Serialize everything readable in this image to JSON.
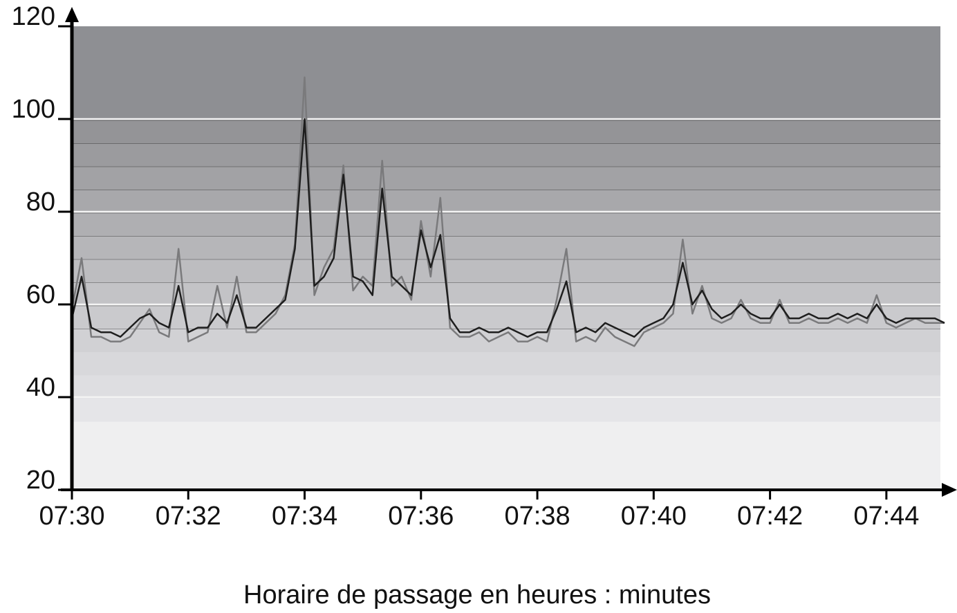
{
  "chart_data": {
    "type": "line",
    "xlabel": "Horaire de passage en heures : minutes",
    "categories": [
      "07:30",
      null,
      null,
      null,
      null,
      null,
      null,
      null,
      null,
      null,
      null,
      null,
      "07:32",
      null,
      null,
      null,
      null,
      null,
      null,
      null,
      null,
      null,
      null,
      null,
      "07:34",
      null,
      null,
      null,
      null,
      null,
      null,
      null,
      null,
      null,
      null,
      null,
      "07:36",
      null,
      null,
      null,
      null,
      null,
      null,
      null,
      null,
      null,
      null,
      null,
      "07:38",
      null,
      null,
      null,
      null,
      null,
      null,
      null,
      null,
      null,
      null,
      null,
      "07:40",
      null,
      null,
      null,
      null,
      null,
      null,
      null,
      null,
      null,
      null,
      null,
      "07:42",
      null,
      null,
      null,
      null,
      null,
      null,
      null,
      null,
      null,
      null,
      null,
      "07:44",
      null,
      null,
      null,
      null,
      null,
      null
    ],
    "series": [
      {
        "color": "#7a7a7c",
        "values": [
          59,
          70,
          53,
          53,
          52,
          52,
          53,
          56,
          59,
          54,
          53,
          72,
          52,
          53,
          54,
          64,
          55,
          66,
          54,
          54,
          56,
          58,
          62,
          73,
          109,
          62,
          68,
          72,
          90,
          63,
          66,
          64,
          91,
          64,
          66,
          61,
          78,
          66,
          83,
          55,
          53,
          53,
          54,
          52,
          53,
          54,
          52,
          52,
          53,
          52,
          61,
          72,
          52,
          53,
          52,
          55,
          53,
          52,
          51,
          54,
          55,
          56,
          58,
          74,
          58,
          64,
          57,
          56,
          57,
          61,
          57,
          56,
          56,
          61,
          56,
          56,
          57,
          56,
          56,
          57,
          56,
          57,
          56,
          62,
          56,
          55,
          56,
          57,
          56,
          56,
          56
        ]
      },
      {
        "color": "#1e1e1e",
        "values": [
          57,
          66,
          55,
          54,
          54,
          53,
          55,
          57,
          58,
          56,
          55,
          64,
          54,
          55,
          55,
          58,
          56,
          62,
          55,
          55,
          57,
          59,
          61,
          72,
          100,
          64,
          66,
          70,
          88,
          66,
          65,
          62,
          85,
          66,
          64,
          62,
          76,
          68,
          75,
          57,
          54,
          54,
          55,
          54,
          54,
          55,
          54,
          53,
          54,
          54,
          59,
          65,
          54,
          55,
          54,
          56,
          55,
          54,
          53,
          55,
          56,
          57,
          60,
          69,
          60,
          63,
          59,
          57,
          58,
          60,
          58,
          57,
          57,
          60,
          57,
          57,
          58,
          57,
          57,
          58,
          57,
          58,
          57,
          60,
          57,
          56,
          57,
          57,
          57,
          57,
          56
        ]
      }
    ],
    "ylim": [
      20,
      120
    ],
    "yticks": [
      20,
      40,
      60,
      80,
      100,
      120
    ],
    "grid": true
  }
}
